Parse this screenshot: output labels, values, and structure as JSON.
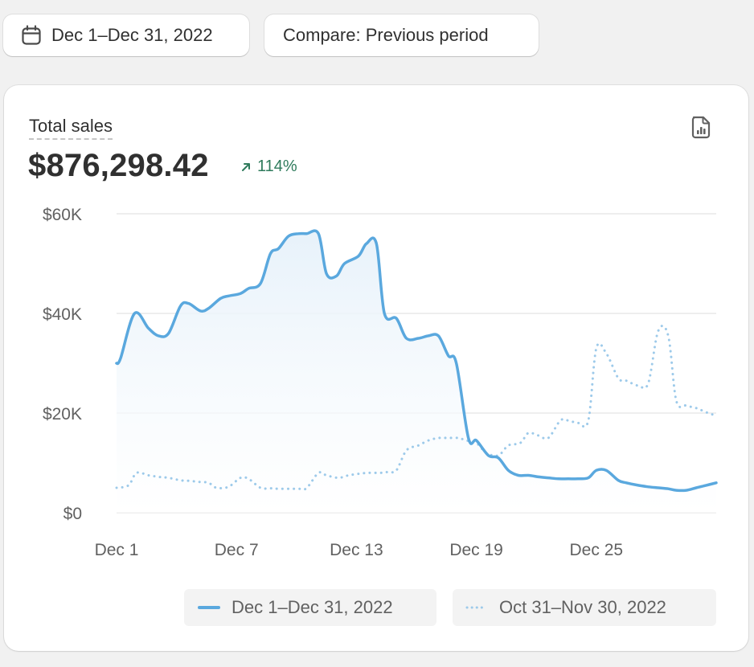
{
  "filters": {
    "date_range_label": "Dec 1–Dec 31, 2022",
    "compare_label": "Compare: Previous period"
  },
  "metric": {
    "label": "Total sales",
    "value": "$876,298.42",
    "change": "114%",
    "change_direction": "up",
    "change_color": "#2f7b5c"
  },
  "icons": {
    "date": "calendar-icon",
    "change": "arrow-up-right-icon",
    "report": "report-document-icon"
  },
  "chart_data": {
    "type": "line",
    "y_tick_labels": [
      "$0",
      "$20K",
      "$40K",
      "$60K"
    ],
    "y_ticks": [
      0,
      20000,
      40000,
      60000
    ],
    "x_tick_labels": [
      "Dec 1",
      "Dec 7",
      "Dec 13",
      "Dec 19",
      "Dec 25"
    ],
    "x_tick_days": [
      1,
      7,
      13,
      19,
      25
    ],
    "ylim": [
      0,
      60000
    ],
    "xlim": [
      1,
      31
    ],
    "grid": true,
    "legend_position": "bottom-right",
    "series": [
      {
        "name": "Dec 1–Dec 31, 2022",
        "style": "solid",
        "color": "#5aa8de",
        "area": true,
        "x": [
          1,
          1.2,
          1.9,
          2.6,
          3.1,
          3.6,
          4.2,
          4.6,
          5.2,
          5.6,
          6.2,
          6.6,
          7.2,
          7.6,
          8.2,
          8.7,
          9.1,
          9.6,
          10.1,
          10.5,
          11.1,
          11.5,
          12.0,
          12.4,
          13.1,
          13.5,
          14.0,
          14.4,
          15.0,
          15.5,
          16.1,
          16.6,
          17.1,
          17.6,
          18.0,
          18.6,
          19.0,
          19.6,
          20.1,
          20.6,
          21.1,
          21.6,
          22.1,
          22.6,
          23.1,
          23.6,
          24.1,
          24.6,
          25.0,
          25.5,
          26.1,
          26.5,
          27.1,
          27.6,
          28.1,
          28.6,
          29.0,
          29.5,
          30.0,
          30.5,
          31.0
        ],
        "y": [
          30000,
          31000,
          40000,
          37000,
          35500,
          36000,
          41500,
          42000,
          40500,
          41000,
          43000,
          43500,
          44000,
          45000,
          46000,
          52000,
          53000,
          55500,
          56000,
          56000,
          56000,
          48000,
          47500,
          50000,
          51500,
          54000,
          54000,
          40000,
          39000,
          35000,
          35000,
          35500,
          35500,
          31500,
          30000,
          15000,
          14500,
          11500,
          11000,
          8500,
          7500,
          7500,
          7200,
          7000,
          6800,
          6800,
          6800,
          7000,
          8500,
          8500,
          6500,
          6000,
          5500,
          5200,
          5000,
          4800,
          4500,
          4500,
          5000,
          5500,
          6000
        ]
      },
      {
        "name": "Oct 31–Nov 30, 2022",
        "style": "dotted",
        "color": "#9dcaea",
        "x": [
          1,
          1.6,
          2.0,
          2.6,
          3.1,
          3.6,
          4.2,
          4.6,
          5.1,
          5.6,
          6.0,
          6.6,
          7.2,
          7.6,
          8.2,
          8.7,
          9.1,
          9.6,
          10.1,
          10.5,
          11.1,
          11.5,
          12.1,
          12.6,
          13.1,
          13.6,
          14.2,
          14.6,
          15.0,
          15.5,
          16.1,
          16.6,
          17.1,
          17.6,
          18.1,
          18.5,
          19.0,
          19.5,
          20.1,
          20.6,
          21.2,
          21.6,
          22.1,
          22.6,
          23.2,
          23.6,
          24.1,
          24.6,
          25.0,
          25.5,
          26.1,
          26.5,
          27.1,
          27.6,
          28.1,
          28.6,
          29.0,
          29.5,
          30.0,
          30.6,
          31.0
        ],
        "y": [
          5000,
          5500,
          8000,
          7500,
          7200,
          7000,
          6500,
          6400,
          6200,
          6000,
          5000,
          5200,
          7000,
          6800,
          5000,
          4900,
          4800,
          4800,
          4800,
          4900,
          8000,
          7500,
          7000,
          7500,
          7800,
          8000,
          8000,
          8200,
          8500,
          12500,
          13500,
          14500,
          15000,
          15000,
          15000,
          14500,
          14000,
          12000,
          11500,
          13500,
          14000,
          16000,
          15500,
          15000,
          18500,
          18500,
          18000,
          18500,
          33000,
          32000,
          27000,
          26500,
          25500,
          26000,
          36500,
          35500,
          22500,
          21500,
          21000,
          20000,
          19500
        ]
      }
    ]
  }
}
